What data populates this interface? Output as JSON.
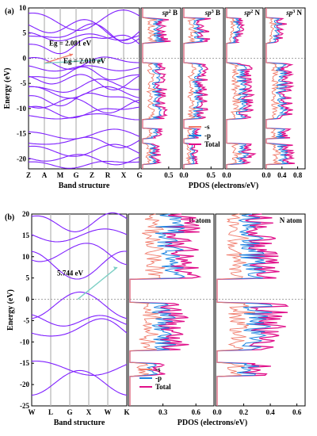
{
  "colors": {
    "band": "#7f1fff",
    "s": "#f07a6a",
    "p": "#1e84e0",
    "total": "#e0108a",
    "gap": "#7ccfc4",
    "grid": "#b4b4b4"
  },
  "chart_data": [
    {
      "panel": "(a)",
      "type": "line",
      "band_structure": {
        "ylabel": "Energy (eV)",
        "xlabel": "Band structure",
        "ylim": [
          -22,
          10
        ],
        "yticks": [
          10,
          5,
          0,
          -5,
          -10,
          -15,
          -20
        ],
        "kpoints": [
          "Z",
          "A",
          "M",
          "G",
          "Z",
          "R",
          "X",
          "G"
        ],
        "annotations": [
          "Eg = 2.081 eV",
          "Eg = 2.010 eV"
        ]
      },
      "pdos_panels": [
        {
          "title_pre": "sp",
          "title_sup": "2",
          "title_post": " B",
          "xticks": [
            "0.5"
          ],
          "xmax": 0.7
        },
        {
          "title_pre": "sp",
          "title_sup": "3",
          "title_post": " B",
          "xticks": [
            "0.0",
            "0.5"
          ],
          "xmax": 0.7
        },
        {
          "title_pre": "sp",
          "title_sup": "2",
          "title_post": " N",
          "xticks": [
            "0.0"
          ],
          "xmax": 0.7
        },
        {
          "title_pre": "sp",
          "title_sup": "3",
          "title_post": " N",
          "xticks": [
            "0.0",
            "0.4",
            "0.8"
          ],
          "xmax": 0.95
        }
      ],
      "pdos_xlabel": "PDOS (electrons/eV)",
      "legend": [
        "-s",
        "-p",
        "Total"
      ]
    },
    {
      "panel": "(b)",
      "type": "line",
      "band_structure": {
        "ylabel": "Energy (eV)",
        "xlabel": "Band structure",
        "ylim": [
          -25,
          20
        ],
        "yticks": [
          20,
          15,
          10,
          5,
          0,
          -5,
          -10,
          -15,
          -20,
          -25
        ],
        "kpoints": [
          "W",
          "L",
          "G",
          "X",
          "W",
          "K"
        ],
        "annotations": [
          "5.744 eV"
        ]
      },
      "pdos_panels": [
        {
          "title": "B atom",
          "xticks": [
            "0.3",
            "0.6"
          ],
          "xmax": 0.75
        },
        {
          "title": "N atom",
          "xticks": [
            "0.0",
            "0.2",
            "0.4",
            "0.6"
          ],
          "xmax": 0.65
        }
      ],
      "pdos_xlabel": "PDOS (electrons/eV)",
      "legend": [
        "-s",
        "-p",
        "Total"
      ]
    }
  ]
}
